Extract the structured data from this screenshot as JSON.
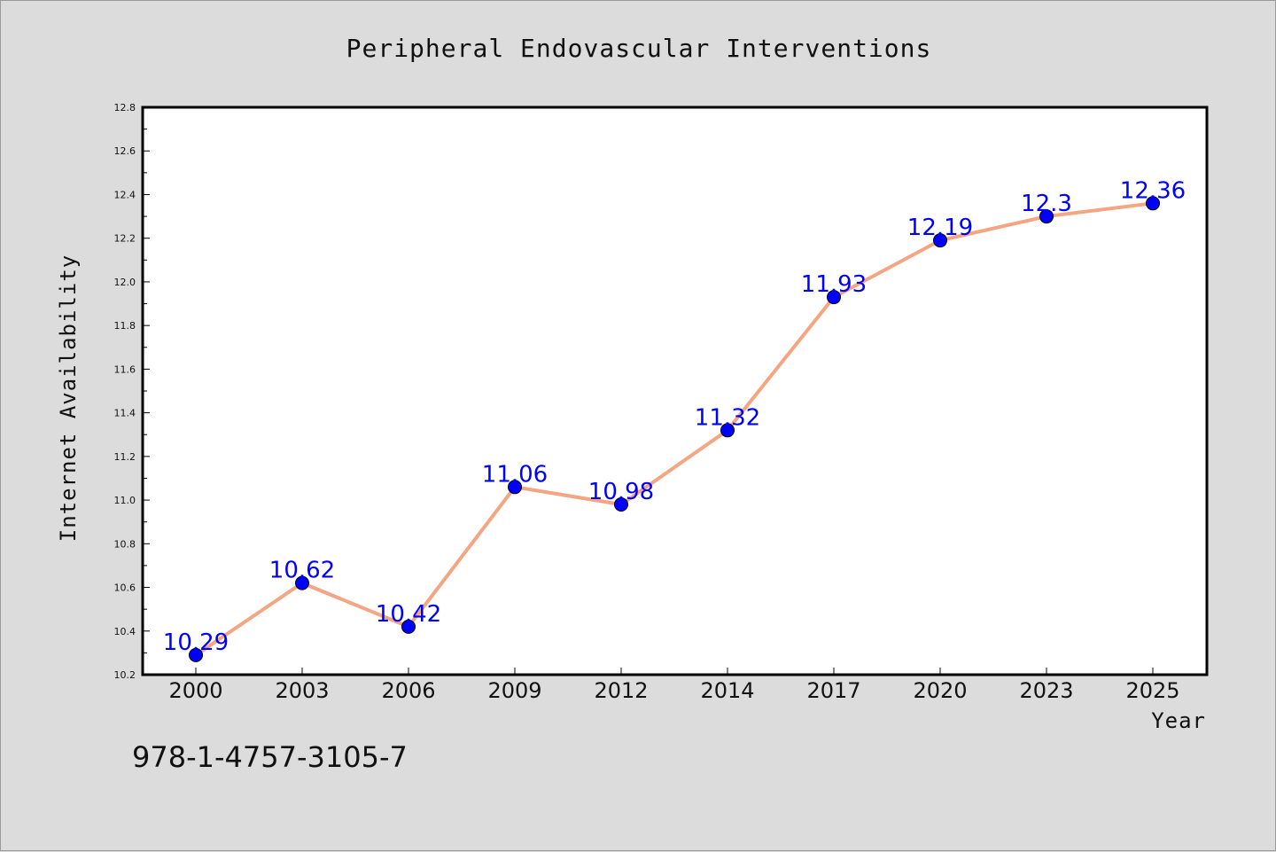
{
  "footer_code": "978-1-4757-3105-7",
  "colors": {
    "background": "#dcdcdc",
    "plot_background": "#ffffff",
    "line": "#f4a582",
    "marker_fill": "#0000ff",
    "data_label": "#0000ff"
  },
  "chart_data": {
    "type": "line",
    "title": "Peripheral Endovascular Interventions",
    "xlabel": "Year",
    "ylabel": "Internet Availability",
    "categories": [
      "2000",
      "2003",
      "2006",
      "2009",
      "2012",
      "2014",
      "2017",
      "2020",
      "2023",
      "2025"
    ],
    "series": [
      {
        "values": [
          10.29,
          10.62,
          10.42,
          11.06,
          10.98,
          11.32,
          11.93,
          12.19,
          12.3,
          12.36
        ],
        "data_labels": [
          "10.29",
          "10.62",
          "10.42",
          "11.06",
          "10.98",
          "11.32",
          "11.93",
          "12.19",
          "12.3",
          "12.36"
        ]
      }
    ],
    "ylim": [
      10.2,
      12.8
    ],
    "yticks": [
      "10.2",
      "10.4",
      "10.6",
      "10.8",
      "11.0",
      "11.2",
      "11.4",
      "11.6",
      "11.8",
      "12.0",
      "12.2",
      "12.4",
      "12.6",
      "12.8"
    ],
    "grid": false,
    "legend": "none"
  }
}
